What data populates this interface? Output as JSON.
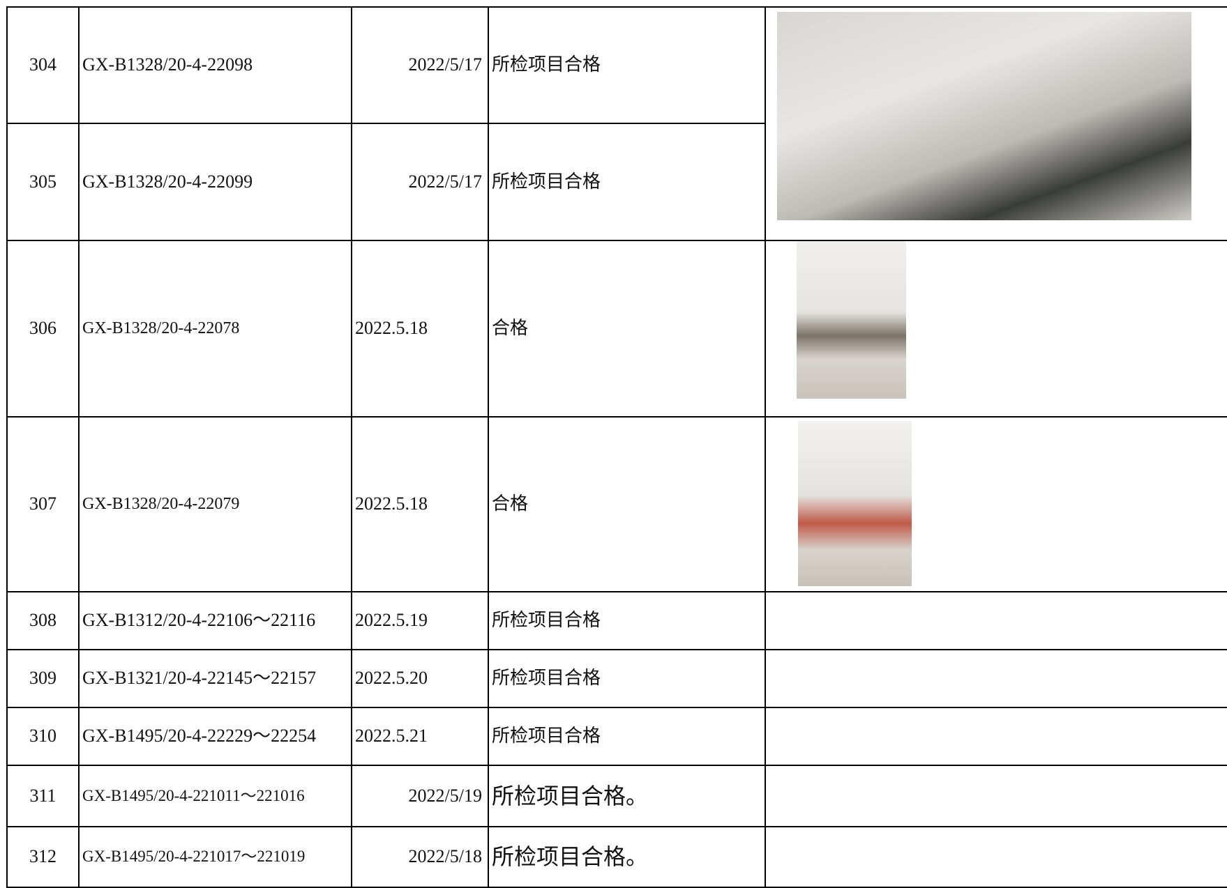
{
  "table": {
    "rows": [
      [
        "304",
        "GX-B1328/20-4-22098",
        "2022/5/17",
        "所检项目合格"
      ],
      [
        "305",
        "GX-B1328/20-4-22099",
        "2022/5/17",
        "所检项目合格"
      ],
      [
        "306",
        "GX-B1328/20-4-22078",
        "2022.5.18",
        "合格"
      ],
      [
        "307",
        "GX-B1328/20-4-22079",
        "2022.5.18",
        "合格"
      ],
      [
        "308",
        "GX-B1312/20-4-22106～22116",
        "2022.5.19",
        "所检项目合格"
      ],
      [
        "309",
        "GX-B1321/20-4-22145～22157",
        "2022.5.20",
        "所检项目合格"
      ],
      [
        "310",
        "GX-B1495/20-4-22229～22254",
        "2022.5.21",
        "所检项目合格"
      ],
      [
        "311",
        "GX-B1495/20-4-221011～221016",
        "2022/5/19",
        "所检项目合格。"
      ],
      [
        "312",
        "GX-B1495/20-4-221017～221019",
        "2022/5/18",
        "所检项目合格。"
      ]
    ]
  }
}
